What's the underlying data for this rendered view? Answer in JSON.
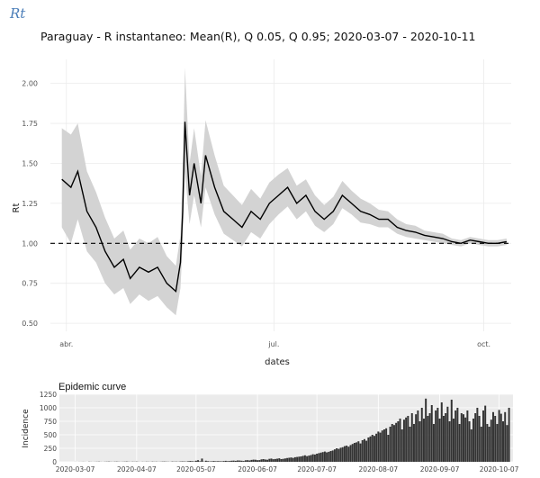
{
  "page": {
    "label": "Rt"
  },
  "chart_data": [
    {
      "type": "line",
      "title": "Paraguay - R instantaneo: Mean(R), Q 0.05, Q 0.95;  2020-03-07 - 2020-10-11",
      "xlabel": "dates",
      "ylabel": "Rt",
      "x_range": [
        "2020-03-25",
        "2020-10-13"
      ],
      "ylim": [
        0.45,
        2.15
      ],
      "x_ticks": [
        {
          "date": "2020-04-01",
          "label": "abr."
        },
        {
          "date": "2020-07-01",
          "label": "jul."
        },
        {
          "date": "2020-10-01",
          "label": "oct."
        }
      ],
      "y_ticks": [
        "0.50",
        "0.75",
        "1.00",
        "1.25",
        "1.50",
        "1.75",
        "2.00"
      ],
      "reference_line": {
        "y": 1.0,
        "style": "dashed"
      },
      "grid": true,
      "colors": {
        "mean": "#000000",
        "band": "#d3d3d3",
        "panel": "#ffffff",
        "grid": "#ebebeb"
      },
      "series": [
        {
          "name": "Mean(R)",
          "x": [
            "2020-03-30",
            "2020-04-03",
            "2020-04-06",
            "2020-04-10",
            "2020-04-14",
            "2020-04-18",
            "2020-04-22",
            "2020-04-26",
            "2020-04-29",
            "2020-05-03",
            "2020-05-07",
            "2020-05-11",
            "2020-05-15",
            "2020-05-19",
            "2020-05-21",
            "2020-05-22",
            "2020-05-23",
            "2020-05-25",
            "2020-05-27",
            "2020-05-30",
            "2020-06-01",
            "2020-06-05",
            "2020-06-09",
            "2020-06-13",
            "2020-06-17",
            "2020-06-21",
            "2020-06-25",
            "2020-06-29",
            "2020-07-03",
            "2020-07-07",
            "2020-07-11",
            "2020-07-15",
            "2020-07-19",
            "2020-07-23",
            "2020-07-27",
            "2020-07-31",
            "2020-08-04",
            "2020-08-08",
            "2020-08-12",
            "2020-08-16",
            "2020-08-20",
            "2020-08-24",
            "2020-08-28",
            "2020-09-01",
            "2020-09-05",
            "2020-09-09",
            "2020-09-13",
            "2020-09-17",
            "2020-09-21",
            "2020-09-25",
            "2020-09-29",
            "2020-10-03",
            "2020-10-07",
            "2020-10-11"
          ],
          "y": [
            1.4,
            1.35,
            1.45,
            1.2,
            1.1,
            0.95,
            0.85,
            0.9,
            0.78,
            0.85,
            0.82,
            0.85,
            0.75,
            0.7,
            0.88,
            1.2,
            1.76,
            1.3,
            1.5,
            1.25,
            1.55,
            1.35,
            1.2,
            1.15,
            1.1,
            1.2,
            1.15,
            1.25,
            1.3,
            1.35,
            1.25,
            1.3,
            1.2,
            1.15,
            1.2,
            1.3,
            1.25,
            1.2,
            1.18,
            1.15,
            1.15,
            1.1,
            1.08,
            1.07,
            1.05,
            1.04,
            1.03,
            1.01,
            1.0,
            1.02,
            1.01,
            1.0,
            1.0,
            1.01
          ]
        },
        {
          "name": "Q 0.05",
          "x": [
            "2020-03-30",
            "2020-04-03",
            "2020-04-06",
            "2020-04-10",
            "2020-04-14",
            "2020-04-18",
            "2020-04-22",
            "2020-04-26",
            "2020-04-29",
            "2020-05-03",
            "2020-05-07",
            "2020-05-11",
            "2020-05-15",
            "2020-05-19",
            "2020-05-21",
            "2020-05-22",
            "2020-05-23",
            "2020-05-25",
            "2020-05-27",
            "2020-05-30",
            "2020-06-01",
            "2020-06-05",
            "2020-06-09",
            "2020-06-13",
            "2020-06-17",
            "2020-06-21",
            "2020-06-25",
            "2020-06-29",
            "2020-07-03",
            "2020-07-07",
            "2020-07-11",
            "2020-07-15",
            "2020-07-19",
            "2020-07-23",
            "2020-07-27",
            "2020-07-31",
            "2020-08-04",
            "2020-08-08",
            "2020-08-12",
            "2020-08-16",
            "2020-08-20",
            "2020-08-24",
            "2020-08-28",
            "2020-09-01",
            "2020-09-05",
            "2020-09-09",
            "2020-09-13",
            "2020-09-17",
            "2020-09-21",
            "2020-09-25",
            "2020-09-29",
            "2020-10-03",
            "2020-10-07",
            "2020-10-11"
          ],
          "y": [
            1.1,
            1.0,
            1.15,
            0.95,
            0.88,
            0.75,
            0.68,
            0.72,
            0.62,
            0.68,
            0.64,
            0.67,
            0.6,
            0.55,
            0.72,
            1.0,
            1.45,
            1.12,
            1.3,
            1.1,
            1.35,
            1.18,
            1.06,
            1.02,
            0.98,
            1.07,
            1.03,
            1.12,
            1.18,
            1.23,
            1.15,
            1.2,
            1.11,
            1.07,
            1.12,
            1.22,
            1.18,
            1.13,
            1.12,
            1.1,
            1.1,
            1.06,
            1.04,
            1.03,
            1.02,
            1.01,
            1.0,
            0.99,
            0.98,
            1.0,
            0.99,
            0.98,
            0.98,
            0.99
          ]
        },
        {
          "name": "Q 0.95",
          "x": [
            "2020-03-30",
            "2020-04-03",
            "2020-04-06",
            "2020-04-10",
            "2020-04-14",
            "2020-04-18",
            "2020-04-22",
            "2020-04-26",
            "2020-04-29",
            "2020-05-03",
            "2020-05-07",
            "2020-05-11",
            "2020-05-15",
            "2020-05-19",
            "2020-05-21",
            "2020-05-22",
            "2020-05-23",
            "2020-05-25",
            "2020-05-27",
            "2020-05-30",
            "2020-06-01",
            "2020-06-05",
            "2020-06-09",
            "2020-06-13",
            "2020-06-17",
            "2020-06-21",
            "2020-06-25",
            "2020-06-29",
            "2020-07-03",
            "2020-07-07",
            "2020-07-11",
            "2020-07-15",
            "2020-07-19",
            "2020-07-23",
            "2020-07-27",
            "2020-07-31",
            "2020-08-04",
            "2020-08-08",
            "2020-08-12",
            "2020-08-16",
            "2020-08-20",
            "2020-08-24",
            "2020-08-28",
            "2020-09-01",
            "2020-09-05",
            "2020-09-09",
            "2020-09-13",
            "2020-09-17",
            "2020-09-21",
            "2020-09-25",
            "2020-09-29",
            "2020-10-03",
            "2020-10-07",
            "2020-10-11"
          ],
          "y": [
            1.72,
            1.68,
            1.75,
            1.45,
            1.32,
            1.16,
            1.03,
            1.08,
            0.96,
            1.03,
            1.0,
            1.04,
            0.92,
            0.86,
            1.05,
            1.42,
            2.1,
            1.5,
            1.72,
            1.42,
            1.77,
            1.55,
            1.36,
            1.3,
            1.24,
            1.34,
            1.28,
            1.38,
            1.43,
            1.47,
            1.36,
            1.4,
            1.3,
            1.24,
            1.29,
            1.39,
            1.33,
            1.28,
            1.25,
            1.21,
            1.2,
            1.15,
            1.12,
            1.11,
            1.08,
            1.07,
            1.06,
            1.03,
            1.02,
            1.04,
            1.03,
            1.02,
            1.02,
            1.03
          ]
        }
      ]
    },
    {
      "type": "bar",
      "title": "Epidemic curve",
      "xlabel": "",
      "ylabel": "Incidence",
      "x_range": [
        "2020-02-28",
        "2020-10-14"
      ],
      "ylim": [
        0,
        1250
      ],
      "x_ticks": [
        "2020-03-07",
        "2020-04-07",
        "2020-05-07",
        "2020-06-07",
        "2020-07-07",
        "2020-08-07",
        "2020-09-07",
        "2020-10-07"
      ],
      "y_ticks": [
        "0",
        "250",
        "500",
        "750",
        "1000",
        "1250"
      ],
      "grid": true,
      "colors": {
        "bar": "#333333",
        "panel": "#ebebeb",
        "grid": "#ffffff"
      },
      "start_date": "2020-03-07",
      "values": [
        1,
        0,
        1,
        1,
        2,
        1,
        0,
        3,
        2,
        1,
        2,
        3,
        4,
        2,
        1,
        3,
        4,
        5,
        3,
        2,
        4,
        5,
        3,
        2,
        3,
        4,
        6,
        3,
        2,
        4,
        3,
        5,
        2,
        1,
        3,
        2,
        4,
        3,
        2,
        5,
        3,
        4,
        2,
        3,
        5,
        6,
        4,
        3,
        2,
        6,
        4,
        5,
        3,
        6,
        8,
        7,
        5,
        10,
        15,
        12,
        8,
        20,
        30,
        10,
        60,
        5,
        20,
        12,
        8,
        10,
        15,
        10,
        12,
        11,
        9,
        14,
        18,
        12,
        15,
        20,
        22,
        18,
        25,
        24,
        20,
        15,
        28,
        30,
        25,
        35,
        40,
        38,
        30,
        32,
        45,
        50,
        42,
        38,
        55,
        60,
        48,
        52,
        58,
        65,
        50,
        55,
        62,
        70,
        75,
        80,
        72,
        85,
        90,
        95,
        100,
        110,
        120,
        105,
        115,
        125,
        140,
        135,
        150,
        160,
        170,
        180,
        190,
        175,
        185,
        200,
        210,
        230,
        250,
        240,
        260,
        270,
        290,
        300,
        280,
        310,
        330,
        350,
        360,
        380,
        340,
        400,
        420,
        390,
        450,
        470,
        500,
        480,
        520,
        560,
        540,
        580,
        600,
        620,
        500,
        650,
        700,
        680,
        720,
        750,
        800,
        600,
        780,
        820,
        850,
        650,
        900,
        700,
        880,
        950,
        750,
        1000,
        800,
        1170,
        850,
        900,
        1050,
        700,
        950,
        1000,
        800,
        1100,
        850,
        900,
        1020,
        750,
        1150,
        800,
        950,
        1000,
        700,
        900,
        880,
        820,
        950,
        750,
        600,
        800,
        900,
        1000,
        850,
        650,
        950,
        1040,
        700,
        650,
        780,
        920,
        850,
        700,
        960,
        890,
        750,
        920,
        680,
        1000
      ]
    }
  ]
}
